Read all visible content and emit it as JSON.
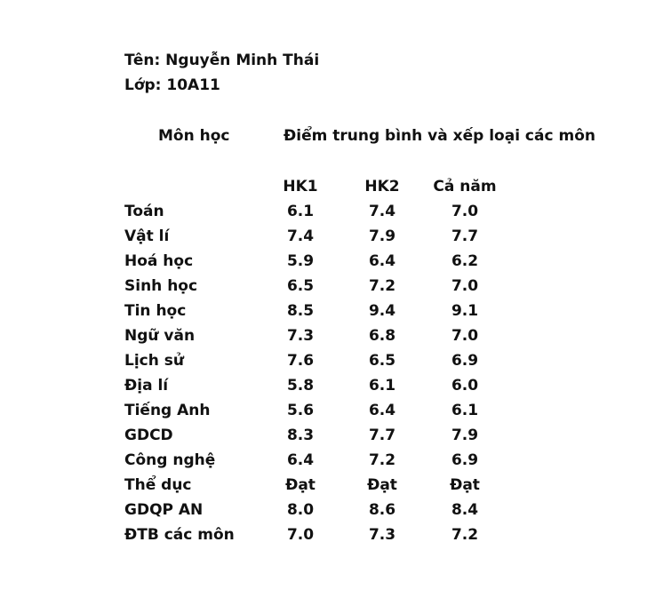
{
  "student": {
    "name_line": "Tên: Nguyễn Minh Thái",
    "class_line": "Lớp: 10A11"
  },
  "table": {
    "subject_header": "Môn học",
    "scores_header": "Điểm trung bình và xếp loại các môn",
    "columns": [
      "HK1",
      "HK2",
      "Cả năm"
    ],
    "rows": [
      {
        "subject": "Toán",
        "hk1": "6.1",
        "hk2": "7.4",
        "year": "7.0"
      },
      {
        "subject": "Vật lí",
        "hk1": "7.4",
        "hk2": "7.9",
        "year": "7.7"
      },
      {
        "subject": "Hoá học",
        "hk1": "5.9",
        "hk2": "6.4",
        "year": "6.2"
      },
      {
        "subject": "Sinh học",
        "hk1": "6.5",
        "hk2": "7.2",
        "year": "7.0"
      },
      {
        "subject": "Tin học",
        "hk1": "8.5",
        "hk2": "9.4",
        "year": "9.1"
      },
      {
        "subject": "Ngữ văn",
        "hk1": "7.3",
        "hk2": "6.8",
        "year": "7.0"
      },
      {
        "subject": "Lịch sử",
        "hk1": "7.6",
        "hk2": "6.5",
        "year": "6.9"
      },
      {
        "subject": "Địa lí",
        "hk1": "5.8",
        "hk2": "6.1",
        "year": "6.0"
      },
      {
        "subject": "Tiếng Anh",
        "hk1": "5.6",
        "hk2": "6.4",
        "year": "6.1"
      },
      {
        "subject": "GDCD",
        "hk1": "8.3",
        "hk2": "7.7",
        "year": "7.9"
      },
      {
        "subject": "Công nghệ",
        "hk1": "6.4",
        "hk2": "7.2",
        "year": "6.9"
      },
      {
        "subject": "Thể dục",
        "hk1": "Đạt",
        "hk2": "Đạt",
        "year": "Đạt"
      },
      {
        "subject": "GDQP AN",
        "hk1": "8.0",
        "hk2": "8.6",
        "year": "8.4"
      },
      {
        "subject": "ĐTB các môn",
        "hk1": "7.0",
        "hk2": "7.3",
        "year": "7.2"
      }
    ]
  }
}
